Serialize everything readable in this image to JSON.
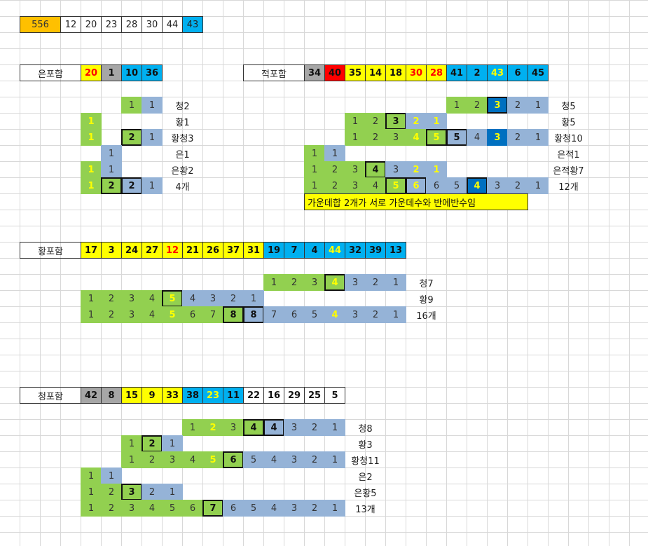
{
  "colors": {
    "gold": "#ffc000",
    "gray": "#a6a6a6",
    "blue": "#00b0f0",
    "yellow": "#ffff00",
    "red": "#ff0000",
    "green": "#92d050",
    "lightblue": "#95b3d7",
    "darkblue": "#0070c0",
    "text_yellow": "#ffff00",
    "text_red": "#ff0000"
  },
  "top_row": [
    "556",
    "12",
    "20",
    "23",
    "28",
    "30",
    "44",
    "43"
  ],
  "sections": {
    "eun": {
      "header_label": "은포함",
      "header_values": [
        "20",
        "1",
        "10",
        "36"
      ],
      "rows": [
        {
          "cells": [
            "1",
            "1"
          ],
          "label": "청2"
        },
        {
          "cells": [
            "1"
          ],
          "label": "황1"
        },
        {
          "cells": [
            "1",
            "2",
            "1"
          ],
          "label": "황청3"
        },
        {
          "cells": [
            "1"
          ],
          "label": "은1"
        },
        {
          "cells": [
            "1",
            "1"
          ],
          "label": "은황2"
        },
        {
          "cells": [
            "1",
            "2",
            "2",
            "1"
          ],
          "label": "4개"
        }
      ]
    },
    "jeok": {
      "header_label": "적포함",
      "header_values": [
        "34",
        "40",
        "35",
        "14",
        "18",
        "30",
        "28",
        "41",
        "2",
        "43",
        "6",
        "45"
      ],
      "rows": [
        {
          "cells": [
            "1",
            "2",
            "3",
            "2",
            "1"
          ],
          "label": "청5"
        },
        {
          "cells": [
            "1",
            "2",
            "3",
            "2",
            "1"
          ],
          "label": "황5"
        },
        {
          "cells": [
            "1",
            "2",
            "3",
            "4",
            "5",
            "5",
            "4",
            "3",
            "2",
            "1"
          ],
          "label": "황청10"
        },
        {
          "cells": [
            "1",
            "1"
          ],
          "label": "은적1"
        },
        {
          "cells": [
            "1",
            "2",
            "3",
            "4",
            "3",
            "2",
            "1"
          ],
          "label": "은적황7"
        },
        {
          "cells": [
            "1",
            "2",
            "3",
            "4",
            "5",
            "6",
            "6",
            "5",
            "4",
            "3",
            "2",
            "1"
          ],
          "label": "12개"
        }
      ],
      "note": "가운데합 2개가 서로 가운데수와 반에반수임"
    },
    "hwang": {
      "header_label": "황포함",
      "header_values": [
        "17",
        "3",
        "24",
        "27",
        "12",
        "21",
        "26",
        "37",
        "31",
        "19",
        "7",
        "4",
        "44",
        "32",
        "39",
        "13"
      ],
      "rows": [
        {
          "cells": [
            "1",
            "2",
            "3",
            "4",
            "3",
            "2",
            "1"
          ],
          "label": "청7"
        },
        {
          "cells": [
            "1",
            "2",
            "3",
            "4",
            "5",
            "4",
            "3",
            "2",
            "1"
          ],
          "label": "황9"
        },
        {
          "cells": [
            "1",
            "2",
            "3",
            "4",
            "5",
            "6",
            "7",
            "8",
            "8",
            "7",
            "6",
            "5",
            "4",
            "3",
            "2",
            "1"
          ],
          "label": "16개"
        }
      ]
    },
    "cheong": {
      "header_label": "청포함",
      "header_values": [
        "42",
        "8",
        "15",
        "9",
        "33",
        "38",
        "23",
        "11",
        "22",
        "16",
        "29",
        "25",
        "5"
      ],
      "rows": [
        {
          "cells": [
            "1",
            "2",
            "3",
            "4",
            "4",
            "3",
            "2",
            "1"
          ],
          "label": "청8"
        },
        {
          "cells": [
            "1",
            "2",
            "1"
          ],
          "label": "황3"
        },
        {
          "cells": [
            "1",
            "2",
            "3",
            "4",
            "5",
            "6",
            "5",
            "4",
            "3",
            "2",
            "1"
          ],
          "label": "황청11"
        },
        {
          "cells": [
            "1",
            "1"
          ],
          "label": "은2"
        },
        {
          "cells": [
            "1",
            "2",
            "3",
            "2",
            "1"
          ],
          "label": "은황5"
        },
        {
          "cells": [
            "1",
            "2",
            "3",
            "4",
            "5",
            "6",
            "7",
            "6",
            "5",
            "4",
            "3",
            "2",
            "1"
          ],
          "label": "13개"
        }
      ]
    }
  }
}
